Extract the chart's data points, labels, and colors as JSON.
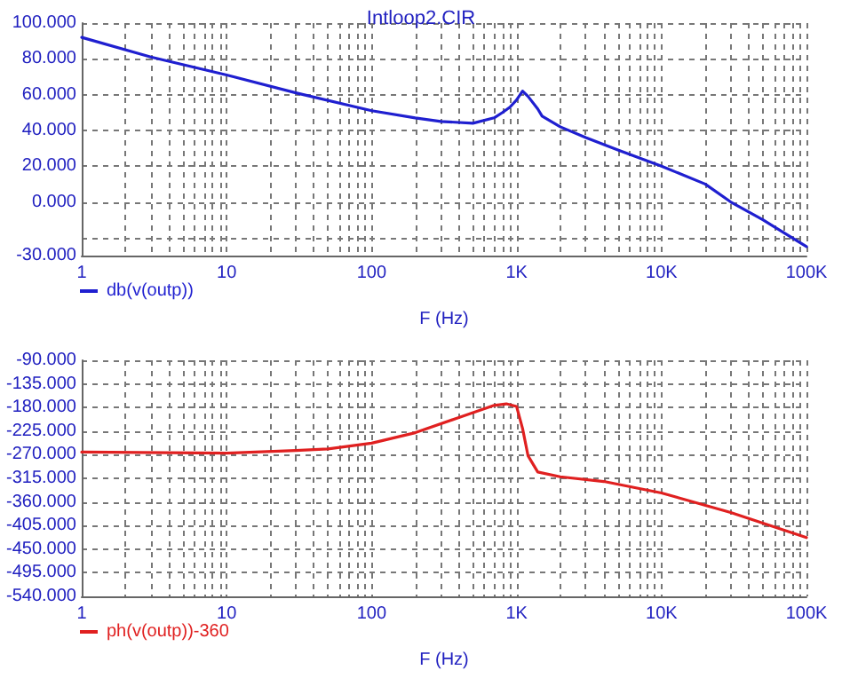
{
  "chart_data": [
    {
      "type": "line",
      "title": "Intloop2.CIR",
      "xlabel": "F (Hz)",
      "log": "x",
      "grid": true,
      "legend": "bottom left",
      "marker": "none",
      "line_style": "solid",
      "xlim": [
        1,
        100000
      ],
      "xticks": [
        1,
        {
          "value": 2,
          "label": null
        },
        {
          "value": 3,
          "label": null
        },
        {
          "value": 4,
          "label": null
        },
        {
          "value": 5,
          "label": null
        },
        {
          "value": 6,
          "label": null
        },
        {
          "value": 7,
          "label": null
        },
        {
          "value": 8,
          "label": null
        },
        {
          "value": 9,
          "label": null
        },
        10,
        {
          "value": 20,
          "label": null
        },
        {
          "value": 30,
          "label": null
        },
        {
          "value": 40,
          "label": null
        },
        {
          "value": 50,
          "label": null
        },
        {
          "value": 60,
          "label": null
        },
        {
          "value": 70,
          "label": null
        },
        {
          "value": 80,
          "label": null
        },
        {
          "value": 90,
          "label": null
        },
        100,
        {
          "value": 200,
          "label": null
        },
        {
          "value": 300,
          "label": null
        },
        {
          "value": 400,
          "label": null
        },
        {
          "value": 500,
          "label": null
        },
        {
          "value": 600,
          "label": null
        },
        {
          "value": 700,
          "label": null
        },
        {
          "value": 800,
          "label": null
        },
        {
          "value": 900,
          "label": null
        },
        {
          "value": 1000,
          "label": "1K"
        },
        {
          "value": 2000,
          "label": null
        },
        {
          "value": 3000,
          "label": null
        },
        {
          "value": 4000,
          "label": null
        },
        {
          "value": 5000,
          "label": null
        },
        {
          "value": 6000,
          "label": null
        },
        {
          "value": 7000,
          "label": null
        },
        {
          "value": 8000,
          "label": null
        },
        {
          "value": 9000,
          "label": null
        },
        {
          "value": 10000,
          "label": "10K"
        },
        {
          "value": 20000,
          "label": null
        },
        {
          "value": 30000,
          "label": null
        },
        {
          "value": 40000,
          "label": null
        },
        {
          "value": 50000,
          "label": null
        },
        {
          "value": 60000,
          "label": null
        },
        {
          "value": 70000,
          "label": null
        },
        {
          "value": 80000,
          "label": null
        },
        {
          "value": 90000,
          "label": null
        },
        {
          "value": 100000,
          "label": "100K"
        }
      ],
      "ylim": [
        -30,
        100
      ],
      "yticks": [
        {
          "value": -30,
          "label": "-30.000"
        },
        {
          "value": -20,
          "label": null
        },
        {
          "value": 0,
          "label": "0.000"
        },
        {
          "value": 20,
          "label": "20.000"
        },
        {
          "value": 40,
          "label": "40.000"
        },
        {
          "value": 60,
          "label": "60.000"
        },
        {
          "value": 80,
          "label": "80.000"
        },
        {
          "value": 100,
          "label": "100.000"
        }
      ],
      "series": [
        {
          "name": "db(v(outp))",
          "color": "#1f1fd0",
          "x": [
            1,
            3,
            10,
            30,
            100,
            200,
            300,
            500,
            700,
            800,
            900,
            1000,
            1100,
            1200,
            1400,
            1500,
            2000,
            3000,
            5000,
            10000,
            20000,
            30000,
            50000,
            100000
          ],
          "values": [
            92,
            81,
            71,
            61,
            51,
            47,
            45,
            44,
            47,
            50,
            53,
            57,
            62,
            59,
            52,
            48,
            42,
            36,
            29,
            20,
            10,
            0,
            -10,
            -25
          ]
        }
      ]
    },
    {
      "type": "line",
      "xlabel": "F (Hz)",
      "log": "x",
      "grid": true,
      "legend": "bottom left",
      "marker": "none",
      "line_style": "solid",
      "xlim": [
        1,
        100000
      ],
      "xticks": [
        1,
        {
          "value": 2,
          "label": null
        },
        {
          "value": 3,
          "label": null
        },
        {
          "value": 4,
          "label": null
        },
        {
          "value": 5,
          "label": null
        },
        {
          "value": 6,
          "label": null
        },
        {
          "value": 7,
          "label": null
        },
        {
          "value": 8,
          "label": null
        },
        {
          "value": 9,
          "label": null
        },
        10,
        {
          "value": 20,
          "label": null
        },
        {
          "value": 30,
          "label": null
        },
        {
          "value": 40,
          "label": null
        },
        {
          "value": 50,
          "label": null
        },
        {
          "value": 60,
          "label": null
        },
        {
          "value": 70,
          "label": null
        },
        {
          "value": 80,
          "label": null
        },
        {
          "value": 90,
          "label": null
        },
        100,
        {
          "value": 200,
          "label": null
        },
        {
          "value": 300,
          "label": null
        },
        {
          "value": 400,
          "label": null
        },
        {
          "value": 500,
          "label": null
        },
        {
          "value": 600,
          "label": null
        },
        {
          "value": 700,
          "label": null
        },
        {
          "value": 800,
          "label": null
        },
        {
          "value": 900,
          "label": null
        },
        {
          "value": 1000,
          "label": "1K"
        },
        {
          "value": 2000,
          "label": null
        },
        {
          "value": 3000,
          "label": null
        },
        {
          "value": 4000,
          "label": null
        },
        {
          "value": 5000,
          "label": null
        },
        {
          "value": 6000,
          "label": null
        },
        {
          "value": 7000,
          "label": null
        },
        {
          "value": 8000,
          "label": null
        },
        {
          "value": 9000,
          "label": null
        },
        {
          "value": 10000,
          "label": "10K"
        },
        {
          "value": 20000,
          "label": null
        },
        {
          "value": 30000,
          "label": null
        },
        {
          "value": 40000,
          "label": null
        },
        {
          "value": 50000,
          "label": null
        },
        {
          "value": 60000,
          "label": null
        },
        {
          "value": 70000,
          "label": null
        },
        {
          "value": 80000,
          "label": null
        },
        {
          "value": 90000,
          "label": null
        },
        {
          "value": 100000,
          "label": "100K"
        }
      ],
      "ylim": [
        -540,
        -90
      ],
      "yticks": [
        {
          "value": -540,
          "label": "-540.000"
        },
        {
          "value": -495,
          "label": "-495.000"
        },
        {
          "value": -450,
          "label": "-450.000"
        },
        {
          "value": -405,
          "label": "-405.000"
        },
        {
          "value": -360,
          "label": "-360.000"
        },
        {
          "value": -315,
          "label": "-315.000"
        },
        {
          "value": -270,
          "label": "-270.000"
        },
        {
          "value": -225,
          "label": "-225.000"
        },
        {
          "value": -180,
          "label": "-180.000"
        },
        {
          "value": -135,
          "label": "-135.000"
        },
        {
          "value": -90,
          "label": "-90.000"
        }
      ],
      "series": [
        {
          "name": "ph(v(outp))-360",
          "color": "#e02020",
          "x": [
            1,
            10,
            30,
            50,
            100,
            200,
            400,
            700,
            850,
            1000,
            1100,
            1200,
            1400,
            2000,
            4000,
            10000,
            30000,
            100000
          ],
          "values": [
            -265,
            -267,
            -262,
            -259,
            -248,
            -228,
            -199,
            -176,
            -173,
            -178,
            -220,
            -272,
            -303,
            -312,
            -321,
            -343,
            -380,
            -428
          ]
        }
      ]
    }
  ]
}
